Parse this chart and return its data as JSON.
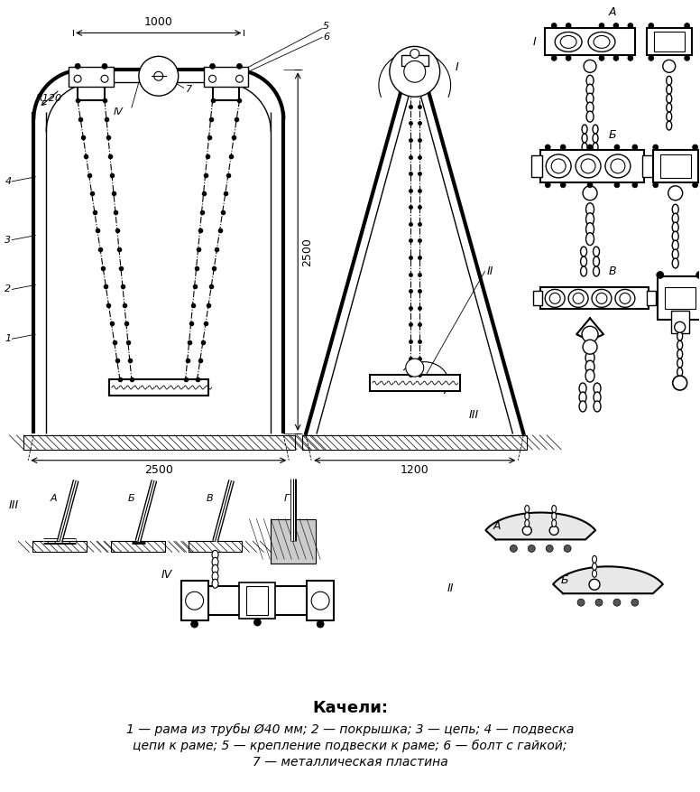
{
  "title": "Качели:",
  "caption_line1": "1 — рама из трубы Ø40 мм; 2 — покрышка; 3 — цепь; 4 — подвеска",
  "caption_line2": "цепи к раме; 5 — крепление подвески к раме; 6 — болт с гайкой;",
  "caption_line3": "7 — металлическая пластина",
  "bg_color": "#ffffff"
}
